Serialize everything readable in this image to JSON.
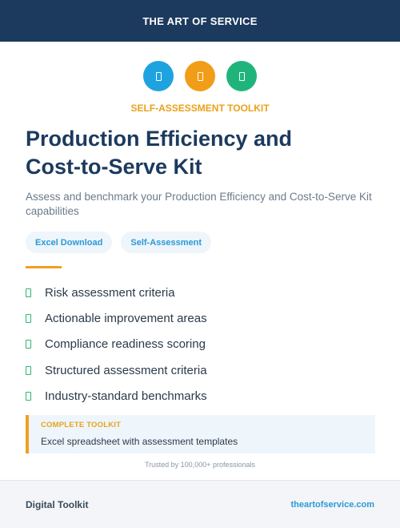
{
  "header": {
    "title": "THE ART OF SERVICE"
  },
  "icons": [
    {
      "name": "document-icon",
      "color": "#1ea3e0"
    },
    {
      "name": "document-icon",
      "color": "#f29d17"
    },
    {
      "name": "document-icon",
      "color": "#1fb57a"
    }
  ],
  "eyebrow": "SELF-ASSESSMENT TOOLKIT",
  "title": {
    "line1": "Production Efficiency and",
    "line2": "Cost-to-Serve Kit"
  },
  "subtitle": "Assess and benchmark your Production Efficiency and Cost-to-Serve Kit capabilities",
  "tags": [
    "Excel Download",
    "Self-Assessment"
  ],
  "features": [
    "Risk assessment criteria",
    "Actionable improvement areas",
    "Compliance readiness scoring",
    "Structured assessment criteria",
    "Industry-standard benchmarks"
  ],
  "callout": {
    "label": "COMPLETE TOOLKIT",
    "text": "Excel spreadsheet with assessment templates"
  },
  "trust": "Trusted by 100,000+ professionals",
  "footer": {
    "left": "Digital Toolkit",
    "right": "theartofservice.com"
  },
  "colors": {
    "navy": "#1c3a5e",
    "accent": "#f0a020",
    "link": "#2a9ad6",
    "check": "#2bb673"
  }
}
